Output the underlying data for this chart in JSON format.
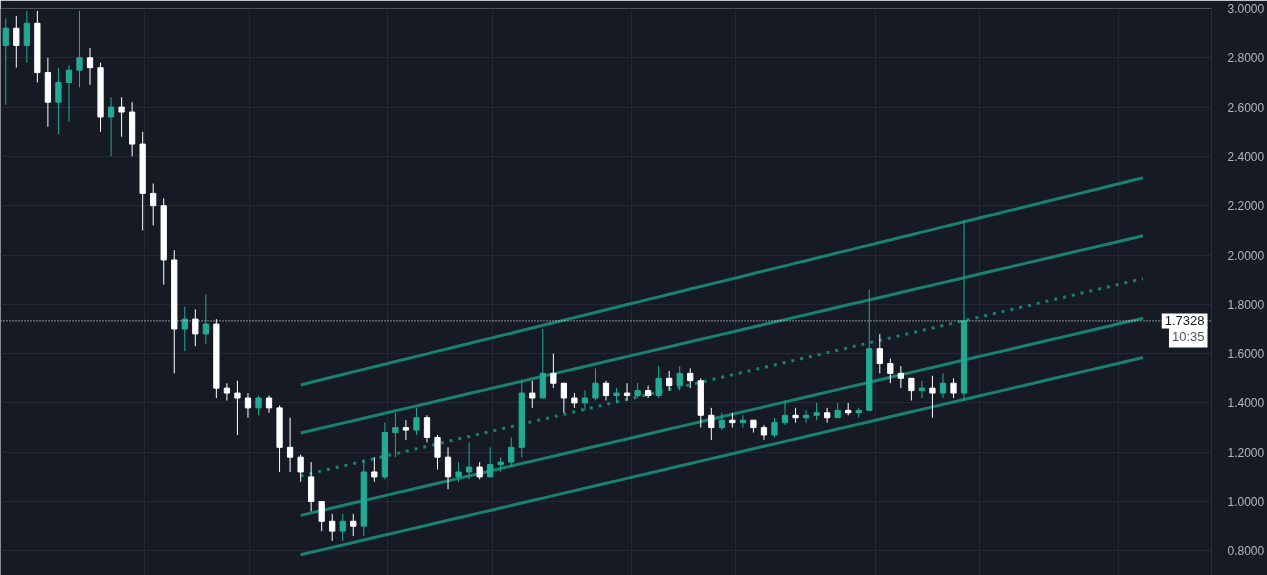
{
  "chart_data": {
    "type": "candlestick",
    "categories": [
      null,
      null,
      null,
      null,
      null,
      null,
      null,
      null,
      null,
      null,
      null,
      null,
      null,
      null,
      null,
      null,
      null,
      null,
      null,
      null,
      null,
      null,
      null,
      null,
      null,
      null,
      null,
      null,
      null,
      null,
      null,
      null,
      null,
      null,
      null,
      null,
      null,
      null,
      null,
      null,
      null,
      null,
      null,
      null,
      null,
      null,
      null,
      null,
      null,
      null,
      null,
      null,
      null,
      null,
      null,
      null,
      null,
      null,
      null,
      null,
      null,
      null,
      null,
      null,
      null,
      null,
      null,
      null,
      null,
      null,
      null,
      null,
      null,
      null,
      null,
      null,
      null,
      null,
      null,
      null,
      null,
      null,
      null,
      null,
      null,
      null,
      null,
      null,
      null,
      null,
      null,
      null,
      null,
      null,
      null,
      null,
      null,
      null,
      null,
      null,
      null,
      null,
      null,
      null,
      null,
      null,
      null,
      null,
      null,
      null,
      null,
      null,
      null,
      null,
      null
    ],
    "ohlc": [
      [
        2.85,
        2.96,
        2.61,
        2.92
      ],
      [
        2.92,
        2.97,
        2.76,
        2.85
      ],
      [
        2.85,
        2.99,
        2.78,
        2.94
      ],
      [
        2.94,
        2.99,
        2.7,
        2.74
      ],
      [
        2.74,
        2.8,
        2.52,
        2.62
      ],
      [
        2.62,
        2.76,
        2.49,
        2.7
      ],
      [
        2.7,
        2.77,
        2.54,
        2.75
      ],
      [
        2.75,
        2.99,
        2.68,
        2.8
      ],
      [
        2.8,
        2.84,
        2.69,
        2.76
      ],
      [
        2.76,
        2.78,
        2.5,
        2.56
      ],
      [
        2.56,
        2.64,
        2.4,
        2.6
      ],
      [
        2.6,
        2.64,
        2.48,
        2.58
      ],
      [
        2.58,
        2.62,
        2.4,
        2.45
      ],
      [
        2.45,
        2.5,
        2.1,
        2.25
      ],
      [
        2.25,
        2.29,
        2.12,
        2.2
      ],
      [
        2.2,
        2.23,
        1.88,
        1.98
      ],
      [
        1.98,
        2.02,
        1.52,
        1.7
      ],
      [
        1.7,
        1.79,
        1.61,
        1.74
      ],
      [
        1.74,
        1.78,
        1.63,
        1.68
      ],
      [
        1.68,
        1.84,
        1.64,
        1.72
      ],
      [
        1.72,
        1.74,
        1.42,
        1.46
      ],
      [
        1.46,
        1.48,
        1.41,
        1.44
      ],
      [
        1.44,
        1.49,
        1.27,
        1.42
      ],
      [
        1.42,
        1.44,
        1.34,
        1.38
      ],
      [
        1.38,
        1.43,
        1.35,
        1.42
      ],
      [
        1.42,
        1.43,
        1.36,
        1.38
      ],
      [
        1.38,
        1.39,
        1.12,
        1.22
      ],
      [
        1.22,
        1.34,
        1.12,
        1.18
      ],
      [
        1.18,
        1.19,
        1.08,
        1.12
      ],
      [
        1.1,
        1.16,
        0.96,
        1.0
      ],
      [
        1.0,
        1.0,
        0.88,
        0.92
      ],
      [
        0.92,
        0.95,
        0.84,
        0.88
      ],
      [
        0.88,
        0.95,
        0.84,
        0.92
      ],
      [
        0.92,
        0.95,
        0.86,
        0.9
      ],
      [
        0.9,
        1.17,
        0.86,
        1.12
      ],
      [
        1.12,
        1.18,
        1.08,
        1.1
      ],
      [
        1.1,
        1.32,
        1.09,
        1.28
      ],
      [
        1.28,
        1.36,
        1.18,
        1.3
      ],
      [
        1.3,
        1.33,
        1.25,
        1.29
      ],
      [
        1.29,
        1.38,
        1.27,
        1.34
      ],
      [
        1.34,
        1.35,
        1.24,
        1.26
      ],
      [
        1.26,
        1.27,
        1.13,
        1.18
      ],
      [
        1.18,
        1.22,
        1.05,
        1.1
      ],
      [
        1.1,
        1.16,
        1.08,
        1.12
      ],
      [
        1.12,
        1.24,
        1.09,
        1.14
      ],
      [
        1.14,
        1.16,
        1.09,
        1.1
      ],
      [
        1.1,
        1.22,
        1.1,
        1.15
      ],
      [
        1.15,
        1.18,
        1.12,
        1.16
      ],
      [
        1.16,
        1.26,
        1.14,
        1.22
      ],
      [
        1.22,
        1.49,
        1.18,
        1.44
      ],
      [
        1.44,
        1.49,
        1.38,
        1.42
      ],
      [
        1.42,
        1.7,
        1.42,
        1.52
      ],
      [
        1.52,
        1.6,
        1.46,
        1.48
      ],
      [
        1.48,
        1.48,
        1.36,
        1.42
      ],
      [
        1.42,
        1.44,
        1.38,
        1.4
      ],
      [
        1.4,
        1.45,
        1.37,
        1.42
      ],
      [
        1.42,
        1.54,
        1.41,
        1.48
      ],
      [
        1.48,
        1.49,
        1.41,
        1.43
      ],
      [
        1.43,
        1.46,
        1.4,
        1.44
      ],
      [
        1.44,
        1.48,
        1.41,
        1.43
      ],
      [
        1.43,
        1.48,
        1.42,
        1.45
      ],
      [
        1.45,
        1.47,
        1.42,
        1.43
      ],
      [
        1.43,
        1.55,
        1.42,
        1.5
      ],
      [
        1.5,
        1.53,
        1.45,
        1.47
      ],
      [
        1.47,
        1.55,
        1.45,
        1.52
      ],
      [
        1.52,
        1.54,
        1.46,
        1.49
      ],
      [
        1.49,
        1.5,
        1.3,
        1.35
      ],
      [
        1.35,
        1.38,
        1.25,
        1.3
      ],
      [
        1.3,
        1.36,
        1.29,
        1.33
      ],
      [
        1.33,
        1.36,
        1.3,
        1.32
      ],
      [
        1.32,
        1.35,
        1.3,
        1.33
      ],
      [
        1.33,
        1.33,
        1.28,
        1.3
      ],
      [
        1.3,
        1.31,
        1.25,
        1.27
      ],
      [
        1.27,
        1.34,
        1.26,
        1.32
      ],
      [
        1.32,
        1.41,
        1.31,
        1.35
      ],
      [
        1.35,
        1.38,
        1.32,
        1.34
      ],
      [
        1.34,
        1.37,
        1.32,
        1.35
      ],
      [
        1.35,
        1.4,
        1.33,
        1.36
      ],
      [
        1.36,
        1.38,
        1.32,
        1.34
      ],
      [
        1.34,
        1.4,
        1.34,
        1.37
      ],
      [
        1.37,
        1.4,
        1.35,
        1.36
      ],
      [
        1.36,
        1.38,
        1.34,
        1.37
      ],
      [
        1.37,
        1.86,
        1.37,
        1.62
      ],
      [
        1.62,
        1.68,
        1.52,
        1.56
      ],
      [
        1.56,
        1.58,
        1.48,
        1.52
      ],
      [
        1.52,
        1.55,
        1.46,
        1.5
      ],
      [
        1.5,
        1.5,
        1.41,
        1.45
      ],
      [
        1.45,
        1.49,
        1.42,
        1.46
      ],
      [
        1.46,
        1.51,
        1.34,
        1.44
      ],
      [
        1.44,
        1.52,
        1.42,
        1.48
      ],
      [
        1.48,
        1.5,
        1.42,
        1.44
      ],
      [
        1.44,
        2.14,
        1.41,
        1.7328
      ],
      null,
      null,
      null,
      null,
      null,
      null,
      null,
      null,
      null,
      null,
      null,
      null,
      null,
      null,
      null,
      null,
      null,
      null,
      null,
      null,
      null,
      null,
      null
    ],
    "colors": [
      "#22ab94",
      "#ffffff",
      "#22ab94",
      "#ffffff",
      "#ffffff",
      "#22ab94",
      "#22ab94",
      "#22ab94",
      "#ffffff",
      "#ffffff",
      "#22ab94",
      "#ffffff",
      "#ffffff",
      "#ffffff",
      "#ffffff",
      "#ffffff",
      "#ffffff",
      "#22ab94",
      "#ffffff",
      "#22ab94",
      "#ffffff",
      "#ffffff",
      "#ffffff",
      "#ffffff",
      "#22ab94",
      "#ffffff",
      "#ffffff",
      "#ffffff",
      "#ffffff",
      "#ffffff",
      "#ffffff",
      "#ffffff",
      "#22ab94",
      "#ffffff",
      "#22ab94",
      "#ffffff",
      "#22ab94",
      "#22ab94",
      "#ffffff",
      "#22ab94",
      "#ffffff",
      "#ffffff",
      "#ffffff",
      "#22ab94",
      "#22ab94",
      "#ffffff",
      "#22ab94",
      "#22ab94",
      "#22ab94",
      "#22ab94",
      "#ffffff",
      "#22ab94",
      "#ffffff",
      "#ffffff",
      "#ffffff",
      "#22ab94",
      "#22ab94",
      "#ffffff",
      "#22ab94",
      "#ffffff",
      "#22ab94",
      "#ffffff",
      "#22ab94",
      "#ffffff",
      "#22ab94",
      "#ffffff",
      "#ffffff",
      "#ffffff",
      "#22ab94",
      "#ffffff",
      "#22ab94",
      "#ffffff",
      "#ffffff",
      "#22ab94",
      "#22ab94",
      "#ffffff",
      "#22ab94",
      "#22ab94",
      "#ffffff",
      "#22ab94",
      "#ffffff",
      "#22ab94",
      "#22ab94",
      "#ffffff",
      "#ffffff",
      "#ffffff",
      "#ffffff",
      "#22ab94",
      "#ffffff",
      "#22ab94",
      "#ffffff",
      "#22ab94",
      null,
      null,
      null,
      null,
      null,
      null,
      null,
      null,
      null,
      null,
      null,
      null,
      null,
      null,
      null,
      null,
      null,
      null,
      null,
      null,
      null,
      null,
      null
    ],
    "series": [
      {
        "type": "line",
        "color": "#178271",
        "line_style": "solid",
        "values": [
          null,
          null,
          null,
          null,
          null,
          null,
          null,
          null,
          null,
          null,
          null,
          null,
          null,
          null,
          null,
          null,
          null,
          null,
          null,
          null,
          null,
          null,
          null,
          null,
          null,
          null,
          null,
          null,
          1.473,
          1.484,
          1.494,
          1.505,
          1.515,
          1.526,
          1.536,
          1.547,
          1.557,
          1.568,
          1.578,
          1.589,
          1.599,
          1.61,
          1.62,
          1.631,
          1.641,
          1.652,
          1.662,
          1.673,
          1.683,
          1.694,
          1.704,
          1.715,
          1.725,
          1.736,
          1.746,
          1.757,
          1.767,
          1.778,
          1.788,
          1.799,
          1.809,
          1.82,
          1.83,
          1.841,
          1.851,
          1.862,
          1.872,
          1.883,
          1.893,
          1.904,
          1.914,
          1.925,
          1.935,
          1.946,
          1.956,
          1.967,
          1.977,
          1.988,
          1.998,
          2.009,
          2.019,
          2.03,
          2.04,
          2.051,
          2.061,
          2.072,
          2.082,
          2.093,
          2.103,
          2.114,
          2.124,
          2.135,
          2.145,
          2.156,
          2.166,
          2.177,
          2.187,
          2.198,
          2.208,
          2.219,
          2.229,
          2.24,
          2.25,
          2.261,
          2.271,
          2.282,
          2.292,
          2.303,
          2.313,
          null,
          null,
          null,
          null,
          null,
          null
        ]
      },
      {
        "type": "line",
        "color": "#178271",
        "line_style": "solid",
        "values": [
          null,
          null,
          null,
          null,
          null,
          null,
          null,
          null,
          null,
          null,
          null,
          null,
          null,
          null,
          null,
          null,
          null,
          null,
          null,
          null,
          null,
          null,
          null,
          null,
          null,
          null,
          null,
          null,
          1.278,
          1.288,
          1.298,
          1.308,
          1.318,
          1.328,
          1.338,
          1.348,
          1.358,
          1.368,
          1.378,
          1.388,
          1.398,
          1.408,
          1.418,
          1.428,
          1.438,
          1.448,
          1.458,
          1.468,
          1.478,
          1.488,
          1.498,
          1.508,
          1.518,
          1.528,
          1.538,
          1.548,
          1.558,
          1.568,
          1.578,
          1.588,
          1.598,
          1.608,
          1.618,
          1.628,
          1.638,
          1.648,
          1.658,
          1.668,
          1.678,
          1.688,
          1.698,
          1.708,
          1.718,
          1.728,
          1.738,
          1.748,
          1.758,
          1.768,
          1.778,
          1.788,
          1.798,
          1.808,
          1.818,
          1.828,
          1.838,
          1.848,
          1.858,
          1.868,
          1.878,
          1.888,
          1.898,
          1.908,
          1.918,
          1.928,
          1.938,
          1.948,
          1.958,
          1.968,
          1.978,
          1.988,
          1.998,
          2.008,
          2.018,
          2.028,
          2.038,
          2.048,
          2.058,
          2.068,
          2.078,
          null,
          null,
          null,
          null,
          null,
          null
        ]
      },
      {
        "type": "line",
        "color": "#178271",
        "line_style": "dotted",
        "values": [
          null,
          null,
          null,
          null,
          null,
          null,
          null,
          null,
          null,
          null,
          null,
          null,
          null,
          null,
          null,
          null,
          null,
          null,
          null,
          null,
          null,
          null,
          null,
          null,
          null,
          null,
          null,
          null,
          1.104,
          1.114,
          1.124,
          1.134,
          1.144,
          1.154,
          1.164,
          1.174,
          1.184,
          1.194,
          1.204,
          1.214,
          1.224,
          1.234,
          1.244,
          1.254,
          1.264,
          1.274,
          1.284,
          1.294,
          1.304,
          1.314,
          1.324,
          1.334,
          1.344,
          1.354,
          1.364,
          1.374,
          1.384,
          1.394,
          1.404,
          1.414,
          1.424,
          1.434,
          1.444,
          1.454,
          1.464,
          1.474,
          1.484,
          1.494,
          1.504,
          1.514,
          1.524,
          1.534,
          1.544,
          1.554,
          1.564,
          1.574,
          1.584,
          1.594,
          1.604,
          1.614,
          1.624,
          1.634,
          1.644,
          1.654,
          1.664,
          1.674,
          1.684,
          1.694,
          1.704,
          1.714,
          1.724,
          1.734,
          1.744,
          1.754,
          1.764,
          1.774,
          1.784,
          1.794,
          1.804,
          1.814,
          1.824,
          1.834,
          1.844,
          1.854,
          1.864,
          1.874,
          1.884,
          1.894,
          1.904,
          null,
          null,
          null,
          null,
          null,
          null
        ]
      },
      {
        "type": "line",
        "color": "#178271",
        "line_style": "solid",
        "values": [
          null,
          null,
          null,
          null,
          null,
          null,
          null,
          null,
          null,
          null,
          null,
          null,
          null,
          null,
          null,
          null,
          null,
          null,
          null,
          null,
          null,
          null,
          null,
          null,
          null,
          null,
          null,
          null,
          0.944,
          0.954,
          0.964,
          0.974,
          0.984,
          0.994,
          1.004,
          1.014,
          1.024,
          1.034,
          1.044,
          1.054,
          1.064,
          1.074,
          1.084,
          1.094,
          1.104,
          1.114,
          1.124,
          1.134,
          1.144,
          1.154,
          1.164,
          1.174,
          1.184,
          1.194,
          1.204,
          1.214,
          1.224,
          1.234,
          1.244,
          1.254,
          1.264,
          1.274,
          1.284,
          1.294,
          1.304,
          1.314,
          1.324,
          1.334,
          1.344,
          1.354,
          1.364,
          1.374,
          1.384,
          1.394,
          1.404,
          1.414,
          1.424,
          1.434,
          1.444,
          1.454,
          1.464,
          1.474,
          1.484,
          1.494,
          1.504,
          1.514,
          1.524,
          1.534,
          1.544,
          1.554,
          1.564,
          1.574,
          1.584,
          1.594,
          1.604,
          1.614,
          1.624,
          1.634,
          1.644,
          1.654,
          1.664,
          1.674,
          1.684,
          1.694,
          1.704,
          1.714,
          1.724,
          1.734,
          1.744,
          null,
          null,
          null,
          null,
          null,
          null
        ]
      },
      {
        "type": "line",
        "color": "#178271",
        "line_style": "solid",
        "values": [
          null,
          null,
          null,
          null,
          null,
          null,
          null,
          null,
          null,
          null,
          null,
          null,
          null,
          null,
          null,
          null,
          null,
          null,
          null,
          null,
          null,
          null,
          null,
          null,
          null,
          null,
          null,
          null,
          0.784,
          0.794,
          0.804,
          0.814,
          0.824,
          0.834,
          0.844,
          0.854,
          0.864,
          0.874,
          0.884,
          0.894,
          0.904,
          0.914,
          0.924,
          0.934,
          0.944,
          0.954,
          0.964,
          0.974,
          0.984,
          0.994,
          1.004,
          1.014,
          1.024,
          1.034,
          1.044,
          1.054,
          1.064,
          1.074,
          1.084,
          1.094,
          1.104,
          1.114,
          1.124,
          1.134,
          1.144,
          1.154,
          1.164,
          1.174,
          1.184,
          1.194,
          1.204,
          1.214,
          1.224,
          1.234,
          1.244,
          1.254,
          1.264,
          1.274,
          1.284,
          1.294,
          1.304,
          1.314,
          1.324,
          1.334,
          1.344,
          1.354,
          1.364,
          1.374,
          1.384,
          1.394,
          1.404,
          1.414,
          1.424,
          1.434,
          1.444,
          1.454,
          1.464,
          1.474,
          1.484,
          1.494,
          1.504,
          1.514,
          1.524,
          1.534,
          1.544,
          1.554,
          1.564,
          1.574,
          1.584,
          null,
          null,
          null,
          null,
          null,
          null
        ]
      }
    ],
    "ylim": [
      0.7,
      3.0
    ],
    "yticks": [
      {
        "value": 0.8,
        "label": "0.8000"
      },
      {
        "value": 1.0,
        "label": "1.0000"
      },
      {
        "value": 1.2,
        "label": "1.2000"
      },
      {
        "value": 1.4,
        "label": "1.4000"
      },
      {
        "value": 1.6,
        "label": "1.6000"
      },
      {
        "value": 1.8,
        "label": "1.8000"
      },
      {
        "value": 2.0,
        "label": "2.0000"
      },
      {
        "value": 2.2,
        "label": "2.2000"
      },
      {
        "value": 2.4,
        "label": "2.4000"
      },
      {
        "value": 2.6,
        "label": "2.6000"
      },
      {
        "value": 2.8,
        "label": "2.8000"
      },
      {
        "value": 3.0,
        "label": "3.0000"
      }
    ],
    "grid": true,
    "ref_lines": [
      {
        "axis": "y",
        "value": 1.7328,
        "label": "1.7328",
        "color": "#ffffff",
        "line_style": "dotted"
      }
    ],
    "annotations": [
      "10:35"
    ]
  }
}
